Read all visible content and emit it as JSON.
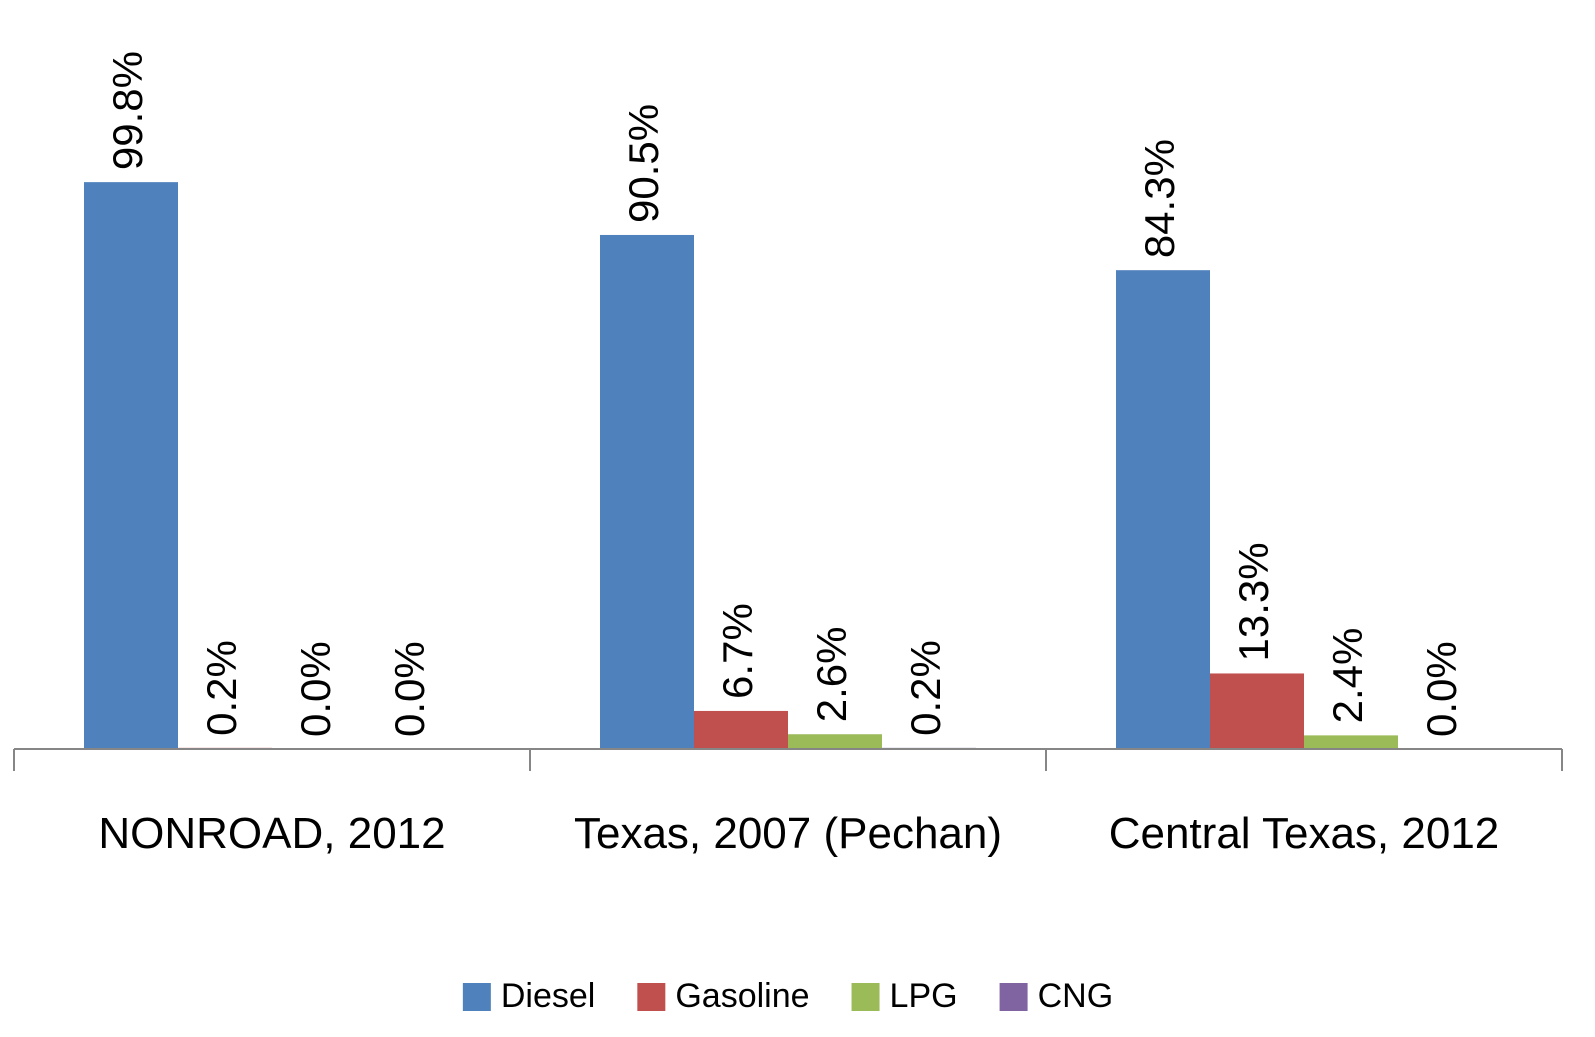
{
  "chart_data": {
    "type": "bar",
    "categories": [
      "NONROAD, 2012",
      "Texas, 2007 (Pechan)",
      "Central Texas, 2012"
    ],
    "series": [
      {
        "name": "Diesel",
        "color": "#4f81bd",
        "values": [
          99.8,
          90.5,
          84.3
        ],
        "value_labels": [
          "99.8%",
          "90.5%",
          "84.3%"
        ]
      },
      {
        "name": "Gasoline",
        "color": "#c0504d",
        "values": [
          0.2,
          6.7,
          13.3
        ],
        "value_labels": [
          "0.2%",
          "6.7%",
          "13.3%"
        ]
      },
      {
        "name": "LPG",
        "color": "#9bbb59",
        "values": [
          0.0,
          2.6,
          2.4
        ],
        "value_labels": [
          "0.0%",
          "2.6%",
          "2.4%"
        ]
      },
      {
        "name": "CNG",
        "color": "#8064a2",
        "values": [
          0.0,
          0.2,
          0.0
        ],
        "value_labels": [
          "0.0%",
          "0.2%",
          "0.0%"
        ]
      }
    ],
    "ylim": [
      0,
      100
    ],
    "legend": "bottom"
  }
}
